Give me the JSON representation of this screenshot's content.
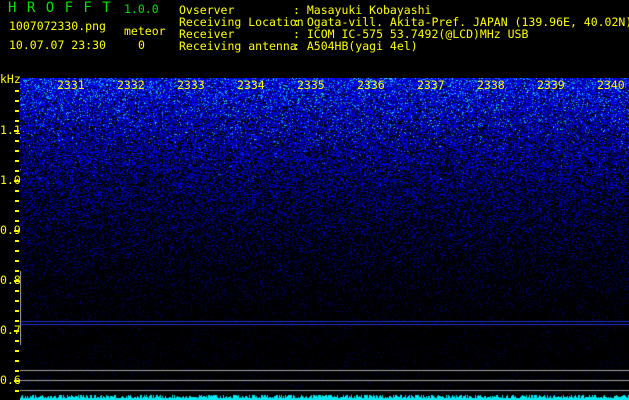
{
  "app": {
    "name_letters": "H R O F F T",
    "version": "1.0.0"
  },
  "file": {
    "name": "1007072330.png",
    "datetime": "10.07.07 23:30"
  },
  "meteor": {
    "label": "meteor",
    "count": "0"
  },
  "info": [
    {
      "label": "Ovserver",
      "value": ": Masayuki Kobayashi"
    },
    {
      "label": "Receiving Location",
      "value": ": Ogata-vill. Akita-Pref. JAPAN (139.96E, 40.02N)"
    },
    {
      "label": "Receiver",
      "value": ": ICOM IC-575 53.7492(@LCD)MHz USB"
    },
    {
      "label": "Receiving antenna",
      "value": ": A504HB(yagi 4el)"
    }
  ],
  "axis": {
    "unit": "kHz",
    "freq_labels": [
      "1.1",
      "1.0",
      "0.9",
      "0.8",
      "0.7",
      "0.6"
    ],
    "time_labels": [
      "2331",
      "2332",
      "2333",
      "2334",
      "2335",
      "2336",
      "2337",
      "2338",
      "2339",
      "2340"
    ]
  },
  "colors": {
    "text": "#ffff00",
    "title": "#00e000",
    "signal": "#0030ff",
    "peak": "#00ff80",
    "noise_floor": "#00e8f0",
    "grid": "#a0a0a0"
  }
}
